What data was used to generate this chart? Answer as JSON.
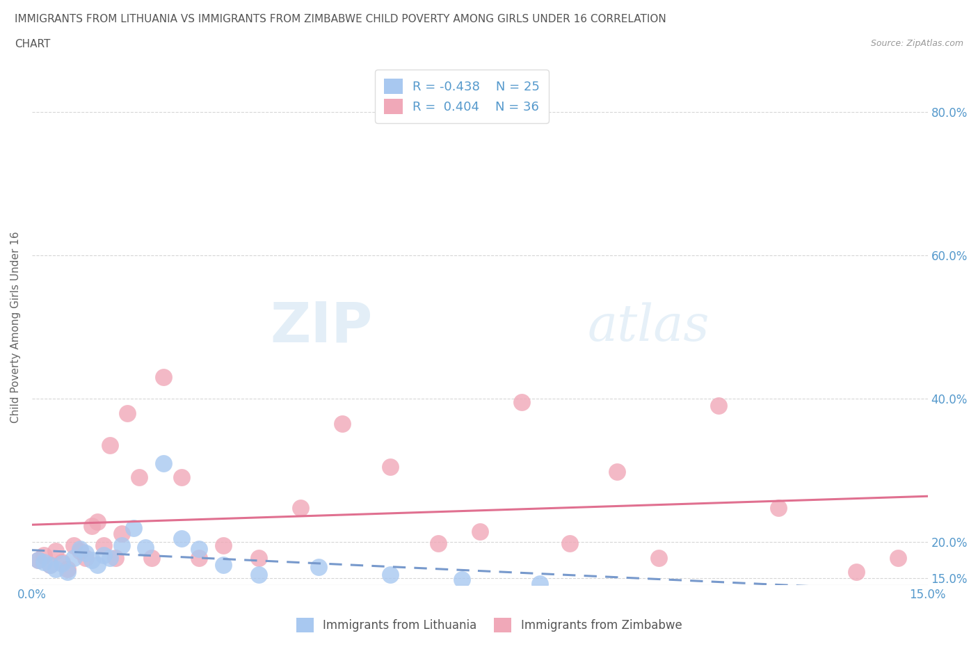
{
  "title_line1": "IMMIGRANTS FROM LITHUANIA VS IMMIGRANTS FROM ZIMBABWE CHILD POVERTY AMONG GIRLS UNDER 16 CORRELATION",
  "title_line2": "CHART",
  "source": "Source: ZipAtlas.com",
  "ylabel": "Child Poverty Among Girls Under 16",
  "xlim": [
    0.0,
    0.15
  ],
  "ylim": [
    0.14,
    0.86
  ],
  "xticks": [
    0.0,
    0.025,
    0.05,
    0.075,
    0.1,
    0.125,
    0.15
  ],
  "xtick_labels": [
    "0.0%",
    "",
    "",
    "",
    "",
    "",
    "15.0%"
  ],
  "yticks": [
    0.15,
    0.2,
    0.4,
    0.6,
    0.8
  ],
  "ytick_labels_right": [
    "15.0%",
    "20.0%",
    "40.0%",
    "60.0%",
    "80.0%"
  ],
  "grid_color": "#cccccc",
  "background_color": "#ffffff",
  "watermark_zip": "ZIP",
  "watermark_atlas": "atlas",
  "watermark_color": "#c8dff0",
  "legend_R1": "R = -0.438",
  "legend_N1": "N = 25",
  "legend_R2": "R =  0.404",
  "legend_N2": "N = 36",
  "color_lithuania": "#a8c8f0",
  "color_zimbabwe": "#f0a8b8",
  "line_color_lithuania": "#7799cc",
  "line_color_zimbabwe": "#e07090",
  "lithuania_x": [
    0.001,
    0.002,
    0.003,
    0.004,
    0.005,
    0.006,
    0.007,
    0.008,
    0.009,
    0.01,
    0.011,
    0.012,
    0.013,
    0.015,
    0.017,
    0.019,
    0.022,
    0.025,
    0.028,
    0.032,
    0.038,
    0.048,
    0.06,
    0.072,
    0.085
  ],
  "lithuania_y": [
    0.175,
    0.172,
    0.168,
    0.162,
    0.17,
    0.158,
    0.178,
    0.19,
    0.185,
    0.175,
    0.168,
    0.182,
    0.178,
    0.195,
    0.22,
    0.192,
    0.31,
    0.205,
    0.19,
    0.168,
    0.155,
    0.165,
    0.155,
    0.148,
    0.142
  ],
  "zimbabwe_x": [
    0.001,
    0.002,
    0.003,
    0.004,
    0.005,
    0.006,
    0.007,
    0.008,
    0.009,
    0.01,
    0.011,
    0.012,
    0.013,
    0.014,
    0.015,
    0.016,
    0.018,
    0.02,
    0.022,
    0.025,
    0.028,
    0.032,
    0.038,
    0.045,
    0.052,
    0.06,
    0.068,
    0.075,
    0.082,
    0.09,
    0.098,
    0.105,
    0.115,
    0.125,
    0.138,
    0.145
  ],
  "zimbabwe_y": [
    0.175,
    0.182,
    0.168,
    0.188,
    0.172,
    0.162,
    0.195,
    0.188,
    0.178,
    0.222,
    0.228,
    0.195,
    0.335,
    0.178,
    0.212,
    0.38,
    0.29,
    0.178,
    0.43,
    0.29,
    0.178,
    0.195,
    0.178,
    0.248,
    0.365,
    0.305,
    0.198,
    0.215,
    0.395,
    0.198,
    0.298,
    0.178,
    0.39,
    0.248,
    0.158,
    0.178
  ]
}
